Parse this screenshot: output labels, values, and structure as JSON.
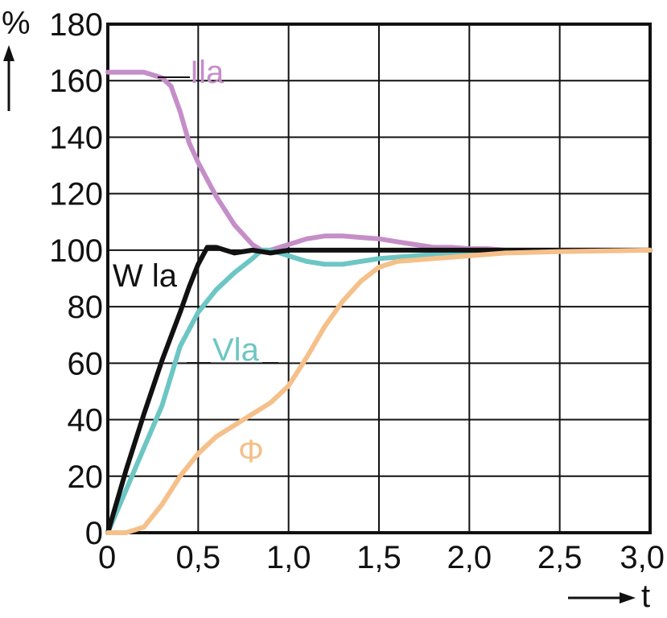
{
  "chart_data": {
    "type": "line",
    "ylabel": "%",
    "xlabel": "t",
    "xlim": [
      0,
      3.0
    ],
    "ylim": [
      0,
      180
    ],
    "grid": true,
    "x_ticks": [
      {
        "value": 0,
        "label": "0"
      },
      {
        "value": 0.5,
        "label": "0,5"
      },
      {
        "value": 1.0,
        "label": "1,0"
      },
      {
        "value": 1.5,
        "label": "1,5"
      },
      {
        "value": 2.0,
        "label": "2,0"
      },
      {
        "value": 2.5,
        "label": "2,5"
      },
      {
        "value": 3.0,
        "label": "3,0"
      }
    ],
    "y_ticks": [
      {
        "value": 0,
        "label": "0"
      },
      {
        "value": 20,
        "label": "20"
      },
      {
        "value": 40,
        "label": "40"
      },
      {
        "value": 60,
        "label": "60"
      },
      {
        "value": 80,
        "label": "80"
      },
      {
        "value": 100,
        "label": "100"
      },
      {
        "value": 120,
        "label": "120"
      },
      {
        "value": 140,
        "label": "140"
      },
      {
        "value": 160,
        "label": "160"
      },
      {
        "value": 180,
        "label": "180"
      }
    ],
    "series": [
      {
        "name": "Ila",
        "color": "#c58ec8",
        "x": [
          0.0,
          0.1,
          0.2,
          0.3,
          0.35,
          0.4,
          0.45,
          0.5,
          0.6,
          0.7,
          0.8,
          0.85,
          0.9,
          1.0,
          1.1,
          1.2,
          1.3,
          1.4,
          1.5,
          1.6,
          1.7,
          1.8,
          1.9,
          2.0,
          2.1,
          2.2,
          3.0
        ],
        "y": [
          163,
          163,
          163,
          161,
          158,
          149,
          138,
          131,
          119,
          109,
          102,
          100,
          100,
          102,
          104,
          105,
          105,
          104.5,
          104,
          103,
          102,
          101,
          101,
          100.5,
          100.5,
          100,
          100
        ]
      },
      {
        "name": "Vla",
        "color": "#6cc6c4",
        "x": [
          0.0,
          0.1,
          0.2,
          0.3,
          0.4,
          0.5,
          0.6,
          0.7,
          0.8,
          0.85,
          0.9,
          1.0,
          1.1,
          1.2,
          1.3,
          1.4,
          1.5,
          1.7,
          1.9,
          2.0,
          2.2,
          3.0
        ],
        "y": [
          0,
          15,
          30,
          45,
          66,
          78,
          86,
          92,
          97,
          100,
          100,
          98,
          96,
          95,
          95,
          96,
          97,
          98,
          99,
          99,
          100,
          100
        ]
      },
      {
        "name": "Wla",
        "color": "#111111",
        "x": [
          0.0,
          0.1,
          0.2,
          0.3,
          0.4,
          0.45,
          0.5,
          0.55,
          0.6,
          0.65,
          0.7,
          0.8,
          0.9,
          1.0,
          1.2,
          1.5,
          2.0,
          3.0
        ],
        "y": [
          0,
          22,
          42,
          61,
          78,
          87,
          95,
          101,
          101,
          100,
          99,
          100,
          99,
          100,
          100,
          100,
          100,
          100
        ]
      },
      {
        "name": "Φ",
        "color": "#f5c08a",
        "x": [
          0.0,
          0.1,
          0.2,
          0.3,
          0.4,
          0.5,
          0.6,
          0.7,
          0.8,
          0.9,
          1.0,
          1.1,
          1.2,
          1.3,
          1.4,
          1.5,
          1.6,
          1.8,
          2.0,
          2.2,
          2.5,
          3.0
        ],
        "y": [
          0,
          0,
          2,
          10,
          20,
          28,
          34,
          38,
          42,
          46,
          52,
          62,
          73,
          82,
          89,
          94,
          96,
          97,
          98,
          99,
          99.5,
          100
        ]
      }
    ],
    "annotations": [
      {
        "series": "Ila",
        "text": "Ila"
      },
      {
        "series": "Vla",
        "text": "Vla"
      },
      {
        "series": "Wla",
        "text": "W la"
      },
      {
        "series": "Φ",
        "text": "Φ"
      }
    ]
  }
}
